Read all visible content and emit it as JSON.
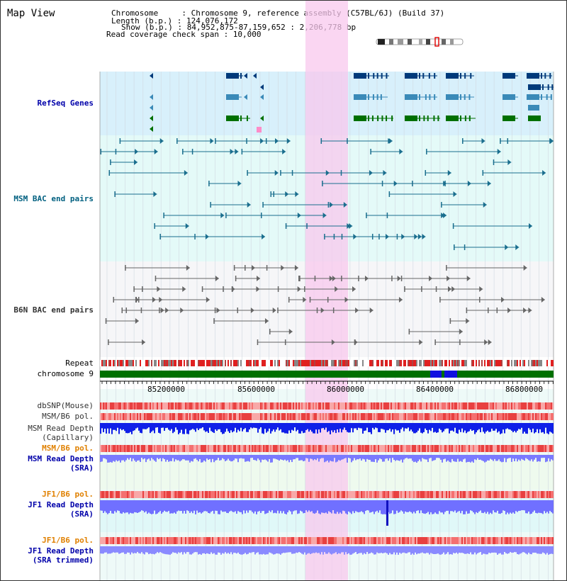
{
  "panel_title": "Map View",
  "info": {
    "chromosome_label": "Chromosome     : Chromosome 9, reference assembly (C57BL/6J) (Build 37)",
    "length_label": "Length (b.p.) : 124,076,172",
    "show_label": "Show (b.p.) : 84,952,875-87,159,652 : 2,206,778 bp",
    "coverage_label": "Read coverage check span : 10,000"
  },
  "tracks": {
    "refseq": "RefSeq Genes",
    "msm_bac": "MSM BAC end pairs",
    "b6n_bac": "B6N BAC end pairs",
    "repeat": "Repeat",
    "chromosome": "chromosome 9",
    "dbsnp": "dbSNP(Mouse)",
    "msm_b6_pol_1": "MSM/B6 pol.",
    "msm_read_depth_cap_1": "MSM Read Depth",
    "msm_read_depth_cap_2": "(Capillary)",
    "msm_b6_pol_2": "MSM/B6 pol.",
    "msm_read_depth_sra_1": "MSM Read Depth",
    "msm_read_depth_sra_2": "(SRA)",
    "jf1_b6_pol_1": "JF1/B6 pol.",
    "jf1_read_depth_sra_1": "JF1 Read Depth",
    "jf1_read_depth_sra_2": "(SRA)",
    "jf1_b6_pol_2": "JF1/B6 pol.",
    "jf1_read_depth_trim_1": "JF1 Read Depth",
    "jf1_read_depth_trim_2": "(SRA trimmed)"
  },
  "axis_ticks": [
    "85200000",
    "85600000",
    "86000000",
    "86400000",
    "86800000"
  ],
  "colors": {
    "refseq_label": "#0000aa",
    "msm_label": "#006080",
    "b6n_label": "#333333",
    "orange_label": "#e08000",
    "blue_label": "#0000aa",
    "highlight": "#f8c8ee",
    "refseq_bg": "#d8f0fb",
    "msm_bg": "#e4faf8"
  }
}
